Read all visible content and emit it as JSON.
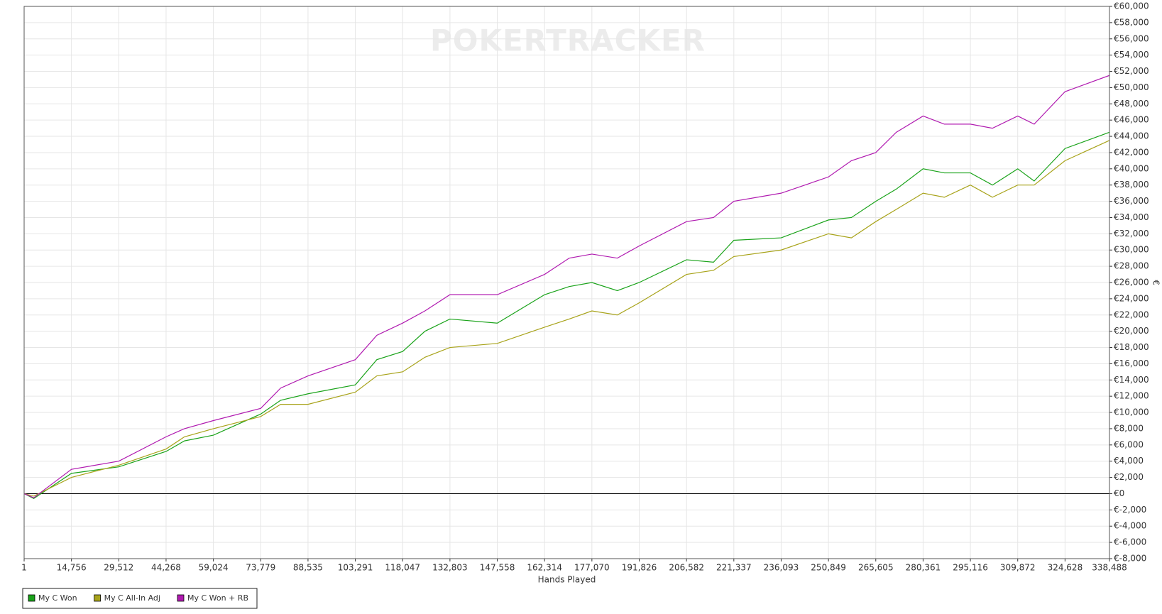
{
  "chart_data": {
    "type": "line",
    "watermark": "POKERTRACKER",
    "x_label": "Hands Played",
    "y_label": "€",
    "x": [
      1,
      3000,
      14756,
      29512,
      44268,
      50000,
      59024,
      73779,
      80000,
      88535,
      103291,
      110000,
      118047,
      125000,
      132803,
      147558,
      162314,
      170000,
      177070,
      185000,
      191826,
      206582,
      215000,
      221337,
      236093,
      250849,
      258000,
      265605,
      272000,
      280361,
      287000,
      295116,
      302000,
      309872,
      315000,
      324628,
      338488
    ],
    "series": [
      {
        "name": "My C Won",
        "color": "#1aa31a",
        "values": [
          0,
          -600,
          2500,
          3300,
          5200,
          6500,
          7200,
          9800,
          11500,
          12300,
          13400,
          16500,
          17500,
          20000,
          21500,
          21000,
          24500,
          25500,
          26000,
          25000,
          26000,
          28800,
          28500,
          31200,
          31500,
          33700,
          34000,
          36000,
          37500,
          40000,
          39500,
          39500,
          38000,
          40000,
          38500,
          42500,
          44500
        ]
      },
      {
        "name": "My C All-In Adj",
        "color": "#a8a31a",
        "values": [
          0,
          -300,
          2000,
          3500,
          5500,
          7000,
          8000,
          9500,
          11000,
          11000,
          12500,
          14500,
          15000,
          16800,
          18000,
          18500,
          20500,
          21500,
          22500,
          22000,
          23500,
          27000,
          27500,
          29200,
          30000,
          32000,
          31500,
          33500,
          35000,
          37000,
          36500,
          38000,
          36500,
          38000,
          38000,
          41000,
          43500
        ]
      },
      {
        "name": "My C Won + RB",
        "color": "#b01ab0",
        "values": [
          0,
          -500,
          3000,
          4000,
          7000,
          8000,
          9000,
          10500,
          13000,
          14500,
          16500,
          19500,
          21000,
          22500,
          24500,
          24500,
          27000,
          29000,
          29500,
          29000,
          30500,
          33500,
          34000,
          36000,
          37000,
          39000,
          41000,
          42000,
          44500,
          46500,
          45500,
          45500,
          45000,
          46500,
          45500,
          49500,
          51500
        ]
      }
    ],
    "xlim": [
      1,
      338488
    ],
    "xticks": [
      1,
      {
        "value": 14756,
        "label": "14,756"
      },
      {
        "value": 29512,
        "label": "29,512"
      },
      {
        "value": 44268,
        "label": "44,268"
      },
      {
        "value": 59024,
        "label": "59,024"
      },
      {
        "value": 73779,
        "label": "73,779"
      },
      {
        "value": 88535,
        "label": "88,535"
      },
      {
        "value": 103291,
        "label": "103,291"
      },
      {
        "value": 118047,
        "label": "118,047"
      },
      {
        "value": 132803,
        "label": "132,803"
      },
      {
        "value": 147558,
        "label": "147,558"
      },
      {
        "value": 162314,
        "label": "162,314"
      },
      {
        "value": 177070,
        "label": "177,070"
      },
      {
        "value": 191826,
        "label": "191,826"
      },
      {
        "value": 206582,
        "label": "206,582"
      },
      {
        "value": 221337,
        "label": "221,337"
      },
      {
        "value": 236093,
        "label": "236,093"
      },
      {
        "value": 250849,
        "label": "250,849"
      },
      {
        "value": 265605,
        "label": "265,605"
      },
      {
        "value": 280361,
        "label": "280,361"
      },
      {
        "value": 295116,
        "label": "295,116"
      },
      {
        "value": 309872,
        "label": "309,872"
      },
      {
        "value": 324628,
        "label": "324,628"
      },
      {
        "value": 338488,
        "label": "338,488"
      }
    ],
    "ylim": [
      -8000,
      60000
    ],
    "yticks": [
      {
        "value": -8000,
        "label": "€-8,000"
      },
      {
        "value": -6000,
        "label": "€-6,000"
      },
      {
        "value": -4000,
        "label": "€-4,000"
      },
      {
        "value": -2000,
        "label": "€-2,000"
      },
      {
        "value": 0,
        "label": "€0"
      },
      {
        "value": 2000,
        "label": "€2,000"
      },
      {
        "value": 4000,
        "label": "€4,000"
      },
      {
        "value": 6000,
        "label": "€6,000"
      },
      {
        "value": 8000,
        "label": "€8,000"
      },
      {
        "value": 10000,
        "label": "€10,000"
      },
      {
        "value": 12000,
        "label": "€12,000"
      },
      {
        "value": 14000,
        "label": "€14,000"
      },
      {
        "value": 16000,
        "label": "€16,000"
      },
      {
        "value": 18000,
        "label": "€18,000"
      },
      {
        "value": 20000,
        "label": "€20,000"
      },
      {
        "value": 22000,
        "label": "€22,000"
      },
      {
        "value": 24000,
        "label": "€24,000"
      },
      {
        "value": 26000,
        "label": "€26,000"
      },
      {
        "value": 28000,
        "label": "€28,000"
      },
      {
        "value": 30000,
        "label": "€30,000"
      },
      {
        "value": 32000,
        "label": "€32,000"
      },
      {
        "value": 34000,
        "label": "€34,000"
      },
      {
        "value": 36000,
        "label": "€36,000"
      },
      {
        "value": 38000,
        "label": "€38,000"
      },
      {
        "value": 40000,
        "label": "€40,000"
      },
      {
        "value": 42000,
        "label": "€42,000"
      },
      {
        "value": 44000,
        "label": "€44,000"
      },
      {
        "value": 46000,
        "label": "€46,000"
      },
      {
        "value": 48000,
        "label": "€48,000"
      },
      {
        "value": 50000,
        "label": "€50,000"
      },
      {
        "value": 52000,
        "label": "€52,000"
      },
      {
        "value": 54000,
        "label": "€54,000"
      },
      {
        "value": 56000,
        "label": "€56,000"
      },
      {
        "value": 58000,
        "label": "€58,000"
      },
      {
        "value": 60000,
        "label": "€60,000"
      }
    ],
    "grid": true,
    "legend": "bottom-left"
  }
}
